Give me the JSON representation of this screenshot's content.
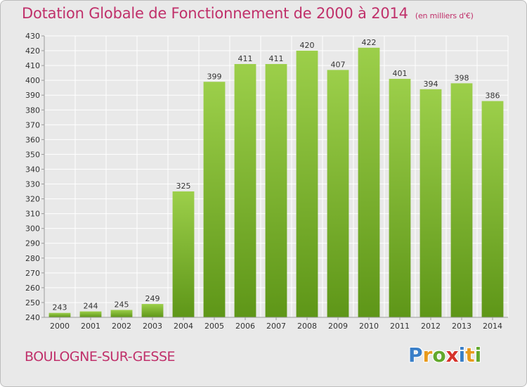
{
  "header": {
    "title": "Dotation Globale de Fonctionnement de 2000 à 2014",
    "unit": "(en milliers d'€)"
  },
  "footer": {
    "place": "BOULOGNE-SUR-GESSE",
    "logo": {
      "letters": [
        "P",
        "r",
        "o",
        "x",
        "i",
        "t",
        "i"
      ],
      "colors": [
        "#3a7fc8",
        "#e89a1d",
        "#62a82c",
        "#d6332b",
        "#3a7fc8",
        "#e89a1d",
        "#62a82c"
      ]
    }
  },
  "colors": {
    "bar_light": "#9ccf4a",
    "bar_dark": "#5e9618",
    "grid": "#ffffff",
    "axis": "#9a9a9a",
    "text": "#333333"
  },
  "chart_data": {
    "type": "bar",
    "title": "Dotation Globale de Fonctionnement de 2000 à 2014",
    "categories": [
      "2000",
      "2001",
      "2002",
      "2003",
      "2004",
      "2005",
      "2006",
      "2007",
      "2008",
      "2009",
      "2010",
      "2011",
      "2012",
      "2013",
      "2014"
    ],
    "values": [
      243,
      244,
      245,
      249,
      325,
      399,
      411,
      411,
      420,
      407,
      422,
      401,
      394,
      398,
      386
    ],
    "ylim": [
      240,
      430
    ],
    "ytick_step": 10,
    "grid": true,
    "legend": "none"
  }
}
